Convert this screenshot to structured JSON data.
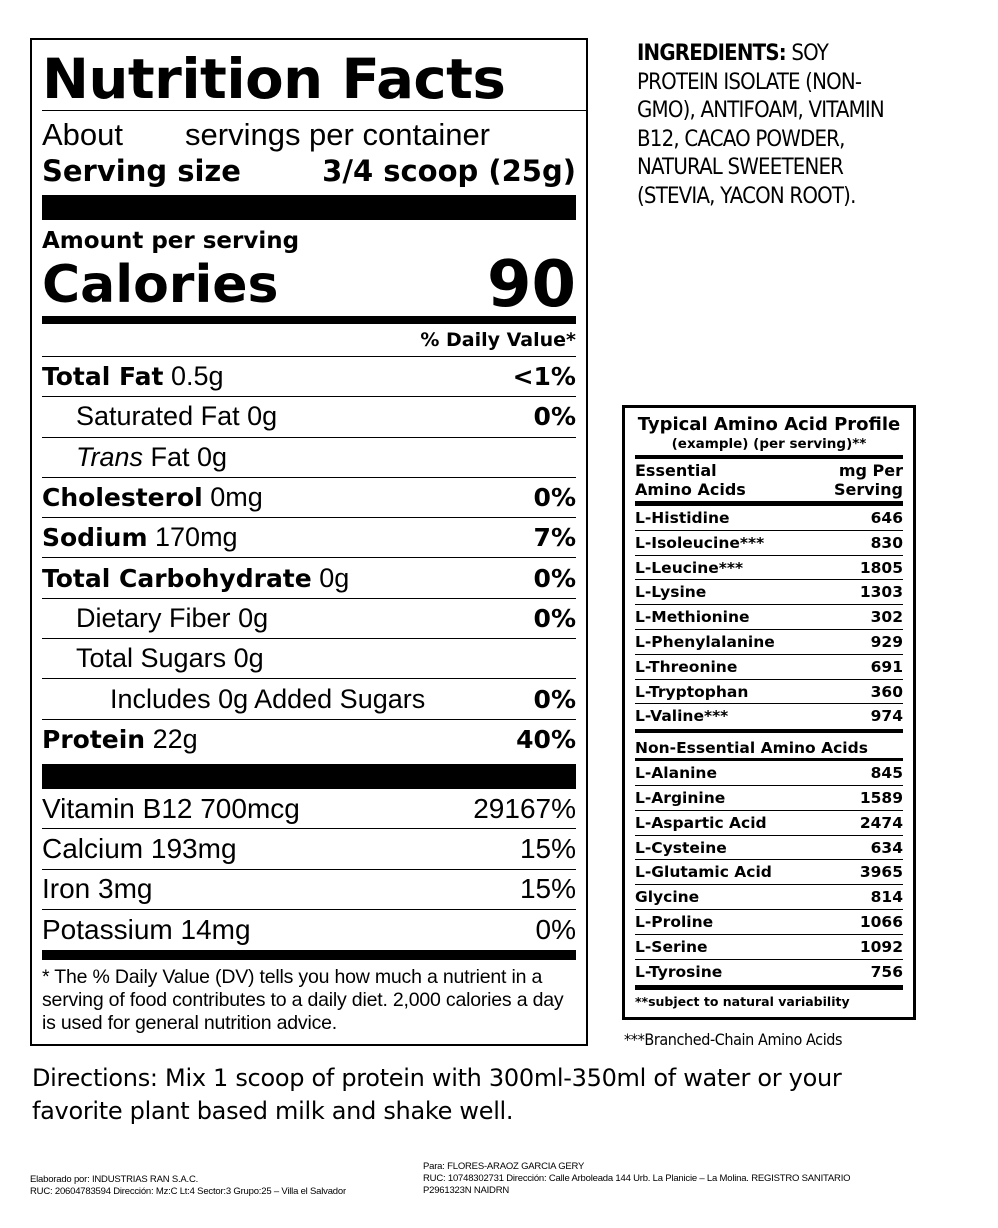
{
  "nutrition": {
    "title": "Nutrition Facts",
    "about": "About",
    "servings": "servings per container",
    "serving_size_label": "Serving size",
    "serving_size_value": "3/4 scoop (25g)",
    "amount_per_serving": "Amount per serving",
    "calories_label": "Calories",
    "calories_value": "90",
    "dv_header": "% Daily Value*",
    "rows": [
      {
        "name": "Total Fat",
        "amount": "0.5g",
        "dv": "<1%",
        "bold": true,
        "indent": 0
      },
      {
        "name": "Saturated Fat",
        "amount": "0g",
        "dv": "0%",
        "indent": 1
      },
      {
        "name": "Trans",
        "amount": "Fat 0g",
        "dv": "",
        "indent": 1,
        "italic": true
      },
      {
        "name": "Cholesterol",
        "amount": "0mg",
        "dv": "0%",
        "bold": true,
        "indent": 0
      },
      {
        "name": "Sodium",
        "amount": "170mg",
        "dv": "7%",
        "bold": true,
        "indent": 0
      },
      {
        "name": "Total Carbohydrate",
        "amount": "0g",
        "dv": "0%",
        "bold": true,
        "indent": 0
      },
      {
        "name": "Dietary Fiber",
        "amount": "0g",
        "dv": "0%",
        "indent": 1
      },
      {
        "name": "Total Sugars",
        "amount": "0g",
        "dv": "",
        "indent": 1
      },
      {
        "name": "Includes 0g Added Sugars",
        "amount": "",
        "dv": "0%",
        "indent": 2
      },
      {
        "name": "Protein",
        "amount": "22g",
        "dv": "40%",
        "bold": true,
        "indent": 0,
        "last": true
      }
    ],
    "vitamins": [
      {
        "name": "Vitamin B12 700mcg",
        "dv": "29167%"
      },
      {
        "name": "Calcium 193mg",
        "dv": "15%"
      },
      {
        "name": "Iron 3mg",
        "dv": "15%"
      },
      {
        "name": "Potassium 14mg",
        "dv": "0%"
      }
    ],
    "footnote": "* The % Daily Value (DV) tells you how much a nutrient in a serving of food contributes to a daily diet. 2,000 calories a day is used for general nutrition advice."
  },
  "ingredients": {
    "label": "INGREDIENTS:",
    "text": " SOY PROTEIN ISOLATE (NON-GMO), ANTIFOAM, VITAMIN B12, CACAO POWDER, NATURAL SWEETENER (STEVIA, YACON ROOT)."
  },
  "amino": {
    "title": "Typical Amino Acid Profile",
    "subtitle": "(example) (per serving)**",
    "col1": "Essential Amino Acids",
    "col2": "mg Per Serving",
    "essential": [
      [
        "L-Histidine",
        "646"
      ],
      [
        "L-Isoleucine***",
        "830"
      ],
      [
        "L-Leucine***",
        "1805"
      ],
      [
        "L-Lysine",
        "1303"
      ],
      [
        "L-Methionine",
        "302"
      ],
      [
        "L-Phenylalanine",
        "929"
      ],
      [
        "L-Threonine",
        "691"
      ],
      [
        "L-Tryptophan",
        "360"
      ],
      [
        "L-Valine***",
        "974"
      ]
    ],
    "non_essential_label": "Non-Essential Amino Acids",
    "non_essential": [
      [
        "L-Alanine",
        "845"
      ],
      [
        "L-Arginine",
        "1589"
      ],
      [
        "L-Aspartic Acid",
        "2474"
      ],
      [
        "L-Cysteine",
        "634"
      ],
      [
        "L-Glutamic Acid",
        "3965"
      ],
      [
        "Glycine",
        "814"
      ],
      [
        "L-Proline",
        "1066"
      ],
      [
        "L-Serine",
        "1092"
      ],
      [
        "L-Tyrosine",
        "756"
      ]
    ],
    "note": "**subject to natural variability",
    "bcaa": "***Branched-Chain Amino Acids"
  },
  "directions": "Directions: Mix 1 scoop of protein with 300ml-350ml of water or your favorite plant based milk and shake well.",
  "maker": {
    "line1": "Elaborado por: INDUSTRIAS RAN S.A.C.",
    "line2": "RUC: 20604783594 Dirección:  Mz:C Lt:4 Sector:3 Grupo:25 – Villa el Salvador"
  },
  "recipient": {
    "line1": "Para: FLORES-ARAOZ GARCIA GERY",
    "line2": "RUC: 10748302731 Dirección:  Calle Arboleada 144 Urb. La Planicie – La Molina. REGISTRO SANITARIO",
    "line3": "P2961323N NAIDRN"
  }
}
